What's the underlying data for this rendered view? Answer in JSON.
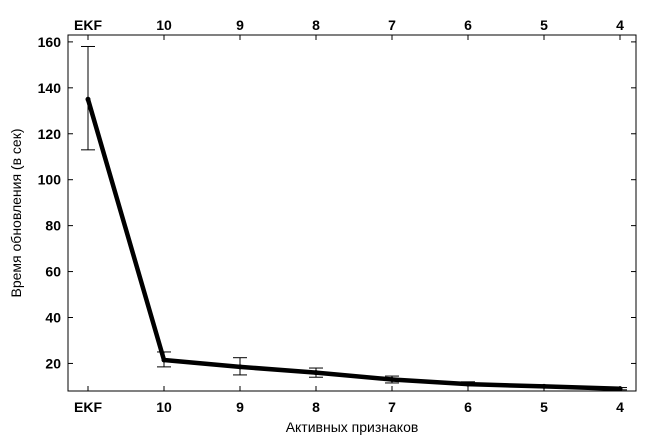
{
  "chart_data": {
    "type": "line",
    "title": "",
    "xlabel": "Активных признаков",
    "ylabel": "Время обновления (в сек)",
    "categories": [
      "EKF",
      "10",
      "9",
      "8",
      "7",
      "6",
      "5",
      "4"
    ],
    "top_categories": [
      "EKF",
      "10",
      "9",
      "8",
      "7",
      "6",
      "5",
      "4"
    ],
    "series": [
      {
        "values": [
          135,
          21.5,
          18.5,
          16,
          13,
          11,
          10,
          9
        ],
        "error_low": [
          113,
          18.5,
          15,
          14,
          11.5,
          10.5,
          9.5,
          8.5
        ],
        "error_high": [
          158,
          25,
          22.5,
          18,
          14.5,
          12,
          10.5,
          9.5
        ]
      }
    ],
    "ylim": [
      8,
      163
    ],
    "yticks": [
      20,
      40,
      60,
      80,
      100,
      120,
      140,
      160
    ],
    "grid": false,
    "legend": "none",
    "line_color": "#000000"
  }
}
